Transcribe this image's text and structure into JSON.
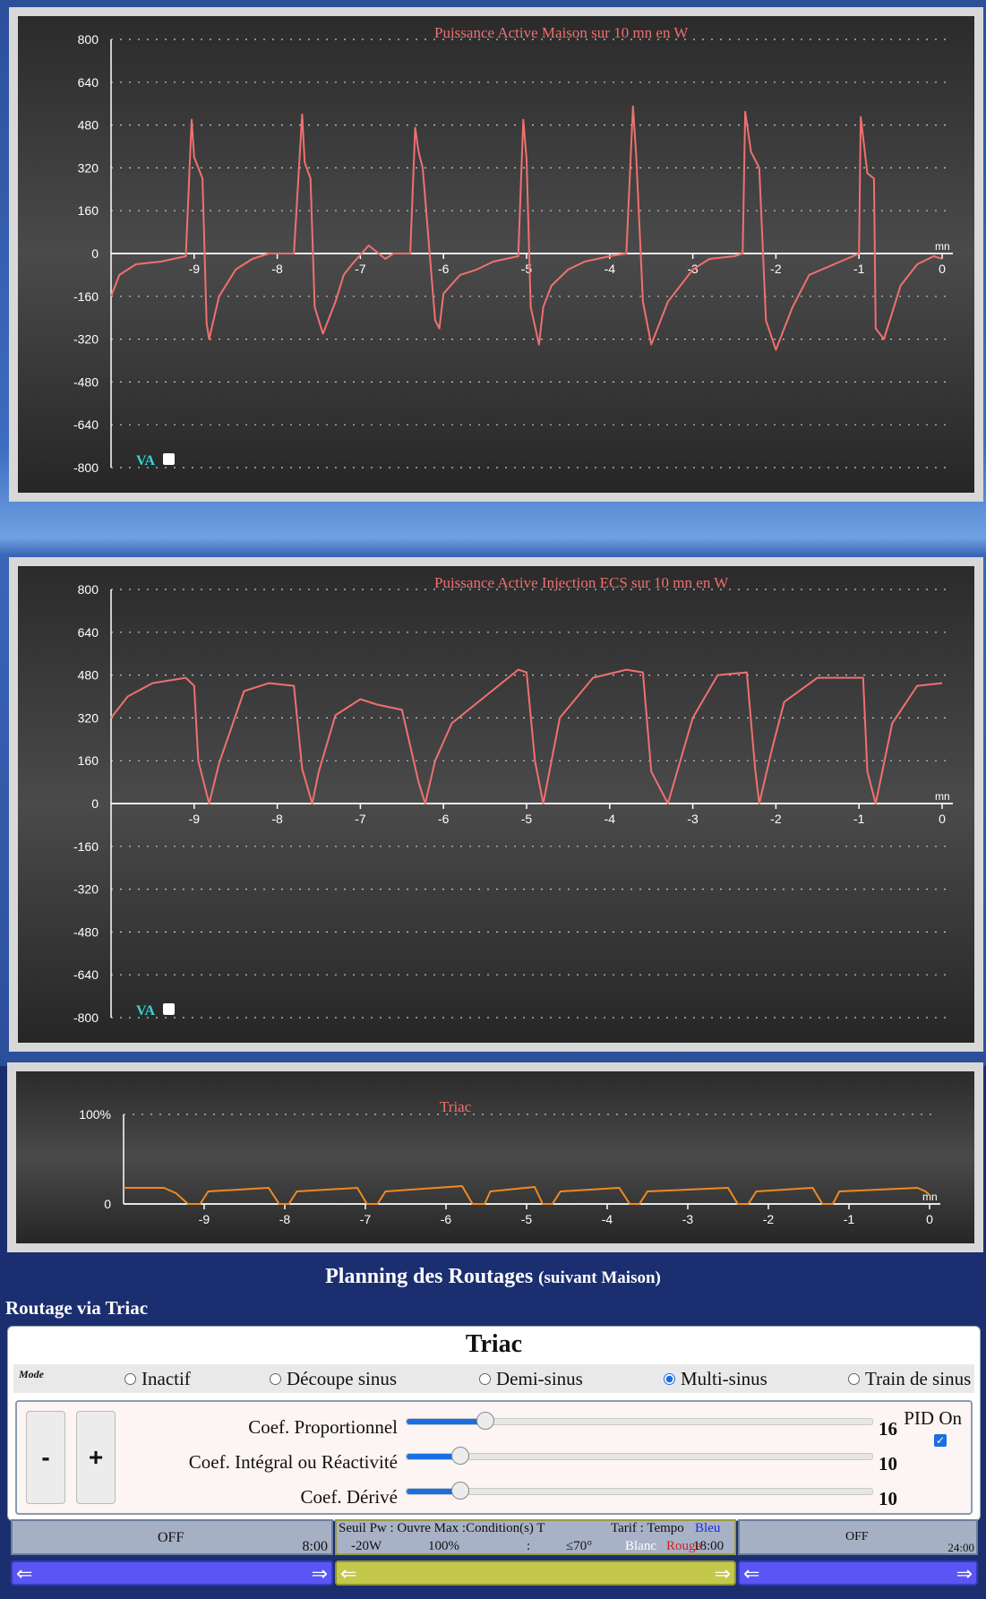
{
  "charts": [
    {
      "type": "line",
      "title": "Puissance Active Maison sur 10 mn en W",
      "xunit": "mn",
      "yticks": [
        800,
        640,
        480,
        320,
        160,
        0,
        -160,
        -320,
        -480,
        -640,
        -800
      ],
      "xticks": [
        -9,
        -8,
        -7,
        -6,
        -5,
        -4,
        -3,
        -2,
        -1,
        0
      ],
      "va_label": "VA",
      "color": "#f07070"
    },
    {
      "type": "line",
      "title": "Puissance Active Injection ECS sur 10 mn en W",
      "xunit": "mn",
      "yticks": [
        800,
        640,
        480,
        320,
        160,
        0,
        -160,
        -320,
        -480,
        -640,
        -800
      ],
      "xticks": [
        -9,
        -8,
        -7,
        -6,
        -5,
        -4,
        -3,
        -2,
        -1,
        0
      ],
      "va_label": "VA",
      "color": "#f07070"
    },
    {
      "type": "line",
      "title": "Triac",
      "xunit": "mn",
      "yticks": [
        "100%",
        "0"
      ],
      "xticks": [
        -9,
        -8,
        -7,
        -6,
        -5,
        -4,
        -3,
        -2,
        -1,
        0
      ],
      "color": "#f08a20"
    }
  ],
  "chart_data": [
    {
      "type": "line",
      "title": "Puissance Active Maison sur 10 mn en W",
      "ylim": [
        -800,
        800
      ],
      "xlim": [
        -10,
        0
      ],
      "x": [
        -10,
        -9.9,
        -9.7,
        -9.4,
        -9.1,
        -9.03,
        -9.0,
        -8.9,
        -8.85,
        -8.82,
        -8.7,
        -8.5,
        -8.3,
        -8.1,
        -7.8,
        -7.7,
        -7.67,
        -7.6,
        -7.55,
        -7.45,
        -7.3,
        -7.2,
        -7.1,
        -6.9,
        -6.7,
        -6.6,
        -6.4,
        -6.34,
        -6.3,
        -6.25,
        -6.1,
        -6.05,
        -6.0,
        -5.8,
        -5.6,
        -5.4,
        -5.1,
        -5.04,
        -5.0,
        -4.95,
        -4.85,
        -4.8,
        -4.7,
        -4.5,
        -4.3,
        -4.0,
        -3.8,
        -3.72,
        -3.68,
        -3.6,
        -3.5,
        -3.3,
        -3.0,
        -2.8,
        -2.5,
        -2.4,
        -2.37,
        -2.3,
        -2.2,
        -2.12,
        -2.0,
        -1.8,
        -1.6,
        -1.3,
        -1.0,
        -0.98,
        -0.9,
        -0.82,
        -0.8,
        -0.7,
        -0.5,
        -0.3,
        -0.1,
        0
      ],
      "series": [
        {
          "values": [
            -160,
            -80,
            -40,
            -30,
            -10,
            500,
            360,
            280,
            -260,
            -320,
            -160,
            -60,
            -20,
            0,
            0,
            520,
            340,
            280,
            -200,
            -300,
            -180,
            -80,
            -40,
            30,
            -20,
            0,
            0,
            470,
            380,
            320,
            -250,
            -280,
            -150,
            -80,
            -60,
            -30,
            -10,
            500,
            350,
            -200,
            -340,
            -200,
            -120,
            -60,
            -30,
            -10,
            0,
            550,
            360,
            -180,
            -340,
            -180,
            -60,
            -20,
            -10,
            0,
            530,
            380,
            320,
            -250,
            -360,
            -200,
            -80,
            -40,
            0,
            510,
            300,
            280,
            -280,
            -320,
            -120,
            -40,
            -10,
            -20
          ]
        }
      ]
    },
    {
      "type": "line",
      "title": "Puissance Active Injection ECS sur 10 mn en W",
      "ylim": [
        -800,
        800
      ],
      "xlim": [
        -10,
        0
      ],
      "x": [
        -10,
        -9.8,
        -9.5,
        -9.1,
        -9.0,
        -8.95,
        -8.82,
        -8.7,
        -8.4,
        -8.1,
        -7.8,
        -7.7,
        -7.58,
        -7.5,
        -7.3,
        -7.0,
        -6.8,
        -6.5,
        -6.3,
        -6.22,
        -6.1,
        -5.9,
        -5.5,
        -5.1,
        -5.0,
        -4.9,
        -4.8,
        -4.6,
        -4.2,
        -3.8,
        -3.6,
        -3.5,
        -3.3,
        -3.0,
        -2.7,
        -2.35,
        -2.25,
        -2.2,
        -2.05,
        -1.9,
        -1.5,
        -1.1,
        -0.95,
        -0.9,
        -0.8,
        -0.6,
        -0.3,
        0
      ],
      "series": [
        {
          "values": [
            320,
            400,
            450,
            470,
            440,
            160,
            0,
            150,
            420,
            450,
            440,
            130,
            0,
            120,
            330,
            390,
            370,
            350,
            80,
            0,
            160,
            300,
            400,
            500,
            490,
            160,
            0,
            320,
            470,
            500,
            490,
            120,
            0,
            320,
            480,
            490,
            130,
            0,
            200,
            380,
            470,
            470,
            470,
            120,
            0,
            300,
            440,
            450
          ]
        }
      ]
    },
    {
      "type": "line",
      "title": "Triac",
      "ylim": [
        0,
        100
      ],
      "xlim": [
        -10,
        0
      ],
      "x": [
        -10,
        -9.5,
        -9.35,
        -9.2,
        -9.05,
        -8.95,
        -8.2,
        -8.07,
        -7.95,
        -7.85,
        -7.1,
        -6.98,
        -6.85,
        -6.75,
        -5.8,
        -5.67,
        -5.52,
        -5.45,
        -4.9,
        -4.8,
        -4.68,
        -4.58,
        -3.85,
        -3.72,
        -3.6,
        -3.5,
        -2.5,
        -2.38,
        -2.25,
        -2.15,
        -1.45,
        -1.33,
        -1.2,
        -1.12,
        -0.15,
        -0.05,
        0
      ],
      "series": [
        {
          "values": [
            18,
            18,
            12,
            0,
            0,
            14,
            18,
            0,
            0,
            14,
            18,
            0,
            0,
            14,
            20,
            0,
            0,
            14,
            19,
            0,
            0,
            14,
            18,
            0,
            0,
            14,
            18,
            0,
            0,
            14,
            18,
            0,
            0,
            14,
            18,
            14,
            10
          ]
        }
      ]
    }
  ],
  "planning": {
    "title": "Planning des Routages",
    "subtitle": "(suivant Maison)",
    "routage_label": "Routage via Triac",
    "triac_title": "Triac",
    "mode_label": "Mode",
    "modes": [
      "Inactif",
      "Découpe sinus",
      "Demi-sinus",
      "Multi-sinus",
      "Train de sinus"
    ],
    "selected_mode": "Multi-sinus",
    "minus": "-",
    "plus": "+",
    "coef_p_label": "Coef. Proportionnel",
    "coef_p_value": "16",
    "coef_p_level": 0.16,
    "coef_i_label": "Coef. Intégral ou Réactivité",
    "coef_i_value": "10",
    "coef_i_level": 0.1,
    "coef_d_label": "Coef. Dérivé",
    "coef_d_value": "10",
    "coef_d_level": 0.1,
    "pid_label": "PID On",
    "pid_checked": true,
    "sched1_state": "OFF",
    "sched1_time": "8:00",
    "sched2_line1": "Seuil Pw : Ouvre Max :Condition(s)   T",
    "sched2_tarif": "Tarif : Tempo",
    "sched2_bleu": "Bleu",
    "sched2_seuil": "-20W",
    "sched2_ouvre": "100%",
    "sched2_cond": ":",
    "sched2_temp": "≤70°",
    "sched2_blanc": "Blanc",
    "sched2_rouge": "Rouge",
    "sched2_time": "18:00",
    "sched3_state": "OFF",
    "sched3_time": "24:00",
    "arrow_left": "⇐",
    "arrow_right": "⇒"
  },
  "colors": {
    "accent": "#1a6fe0",
    "schedule_blue": "#5a55f5",
    "schedule_yellow": "#c3c84a",
    "header_bg": "#1b2f70"
  }
}
